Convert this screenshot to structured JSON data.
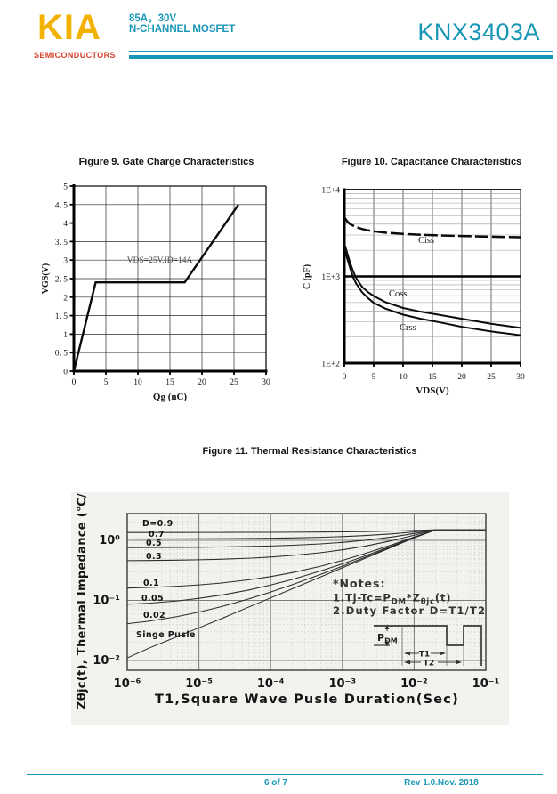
{
  "header": {
    "logo": "KIA",
    "logo_subtitle": "SEMICONDUCTORS",
    "rating": "85A，30V",
    "device_type": "N-CHANNEL MOSFET",
    "part_number": "KNX3403A",
    "accent_color": "#1896B6",
    "logo_color": "#F3B200",
    "logo_subtitle_color": "#D8432C"
  },
  "footer": {
    "page_number": "6 of 7",
    "revision": "Rev 1.0.Nov. 2018"
  },
  "chart_data": [
    {
      "type": "line",
      "title": "Figure 9. Gate Charge Characteristics",
      "xlabel": "Qg (nC)",
      "ylabel": "VGS(V)",
      "xlim": [
        0,
        30
      ],
      "ylim": [
        0,
        5
      ],
      "grid": true,
      "xtick_labels": [
        "0",
        "5",
        "10",
        "15",
        "20",
        "25",
        "30"
      ],
      "ytick_labels": [
        "0",
        "0. 5",
        "1",
        "1. 5",
        "2",
        "2. 5",
        "3",
        "3. 5",
        "4",
        "4. 5",
        "5"
      ],
      "annotation": "VDS=25V,ID=14A",
      "series": [
        {
          "name": "VGS",
          "points": [
            [
              0,
              0
            ],
            [
              3.4,
              2.4
            ],
            [
              17.3,
              2.4
            ],
            [
              25.7,
              4.5
            ]
          ]
        }
      ]
    },
    {
      "type": "line",
      "title": "Figure 10. Capacitance Characteristics",
      "xlabel": "VDS(V)",
      "ylabel": "C (pF)",
      "xlim": [
        0,
        30
      ],
      "yscale": "log",
      "ylim": [
        100,
        10000
      ],
      "grid": true,
      "xtick_labels": [
        "0",
        "5",
        "10",
        "15",
        "20",
        "25",
        "30"
      ],
      "ytick_labels": [
        "1E+2",
        "1E+3",
        "1E+4"
      ],
      "series": [
        {
          "name": "Ciss",
          "points": [
            [
              0,
              4800
            ],
            [
              0.5,
              4300
            ],
            [
              1,
              4000
            ],
            [
              2,
              3700
            ],
            [
              3,
              3520
            ],
            [
              4,
              3400
            ],
            [
              5,
              3310
            ],
            [
              7,
              3190
            ],
            [
              10,
              3090
            ],
            [
              13,
              3020
            ],
            [
              16,
              2970
            ],
            [
              20,
              2920
            ],
            [
              25,
              2870
            ],
            [
              30,
              2830
            ]
          ]
        },
        {
          "name": "Coss",
          "points": [
            [
              0,
              2400
            ],
            [
              0.5,
              1850
            ],
            [
              1,
              1420
            ],
            [
              1.5,
              1150
            ],
            [
              2,
              960
            ],
            [
              3,
              760
            ],
            [
              4,
              660
            ],
            [
              5,
              595
            ],
            [
              7,
              505
            ],
            [
              10,
              432
            ],
            [
              13,
              392
            ],
            [
              16,
              362
            ],
            [
              20,
              325
            ],
            [
              25,
              285
            ],
            [
              30,
              255
            ]
          ]
        },
        {
          "name": "Crss",
          "points": [
            [
              0,
              2250
            ],
            [
              0.5,
              1600
            ],
            [
              1,
              1230
            ],
            [
              1.5,
              980
            ],
            [
              2,
              830
            ],
            [
              3,
              660
            ],
            [
              4,
              565
            ],
            [
              5,
              495
            ],
            [
              7,
              425
            ],
            [
              10,
              362
            ],
            [
              13,
              325
            ],
            [
              16,
              298
            ],
            [
              20,
              262
            ],
            [
              25,
              232
            ],
            [
              30,
              210
            ]
          ]
        }
      ]
    },
    {
      "type": "line",
      "title": "Figure 11. Thermal Resistance Characteristics",
      "xlabel": "T1,Square Wave Pusle Duration(Sec)",
      "ylabel": "Zθjc(t), Thermal Impedance (℃/W)",
      "xscale": "log",
      "yscale": "log",
      "xlim": [
        1e-06,
        0.1
      ],
      "grid": true,
      "xtick_labels": [
        "10⁻⁶",
        "10⁻⁵",
        "10⁻⁴",
        "10⁻³",
        "10⁻²",
        "10⁻¹"
      ],
      "ytick_labels": [
        "10⁰",
        "10⁻¹",
        "10⁻²"
      ],
      "x": [
        1e-06,
        2e-06,
        5e-06,
        1e-05,
        2e-05,
        5e-05,
        0.0001,
        0.0002,
        0.0005,
        0.001,
        0.002,
        0.005,
        0.01,
        0.02,
        0.05,
        0.1
      ],
      "series": [
        {
          "name": "D=0.9",
          "values": [
            1.351,
            1.352,
            1.352,
            1.353,
            1.355,
            1.358,
            1.361,
            1.366,
            1.375,
            1.385,
            1.399,
            1.428,
            1.46,
            1.5,
            1.5,
            1.5
          ]
        },
        {
          "name": "0.7",
          "values": [
            1.053,
            1.055,
            1.057,
            1.06,
            1.065,
            1.073,
            1.083,
            1.097,
            1.124,
            1.154,
            1.198,
            1.283,
            1.38,
            1.5,
            1.5,
            1.5
          ]
        },
        {
          "name": "0.5",
          "values": [
            0.756,
            0.758,
            0.762,
            0.767,
            0.775,
            0.789,
            0.805,
            0.828,
            0.873,
            0.924,
            0.996,
            1.139,
            1.3,
            1.5,
            1.5,
            1.5
          ]
        },
        {
          "name": "0.3",
          "values": [
            0.458,
            0.461,
            0.467,
            0.474,
            0.484,
            0.504,
            0.527,
            0.559,
            0.622,
            0.694,
            0.794,
            0.994,
            1.22,
            1.5,
            1.5,
            1.5
          ]
        },
        {
          "name": "0.1",
          "values": [
            0.16,
            0.164,
            0.172,
            0.181,
            0.194,
            0.22,
            0.249,
            0.29,
            0.371,
            0.463,
            0.593,
            0.85,
            1.14,
            1.5,
            1.5,
            1.5
          ]
        },
        {
          "name": "0.05",
          "values": [
            0.086,
            0.09,
            0.098,
            0.108,
            0.122,
            0.149,
            0.18,
            0.223,
            0.309,
            0.405,
            0.542,
            0.814,
            1.12,
            1.5,
            1.5,
            1.5
          ]
        },
        {
          "name": "0.02",
          "values": [
            0.041,
            0.045,
            0.054,
            0.064,
            0.078,
            0.106,
            0.138,
            0.182,
            0.271,
            0.371,
            0.512,
            0.792,
            1.108,
            1.5,
            1.5,
            1.5
          ]
        },
        {
          "name": "Singe Pusle",
          "values": [
            0.011,
            0.016,
            0.025,
            0.035,
            0.049,
            0.078,
            0.11,
            0.156,
            0.246,
            0.348,
            0.492,
            0.778,
            1.1,
            1.5,
            1.5,
            1.5
          ]
        }
      ]
    }
  ],
  "fig11_notes": {
    "header": "*Notes:",
    "line1_parts": {
      "a": "1.Tj-Tc=P",
      "b": "DM",
      "c": "*Z",
      "d": "θjc",
      "e": "(t)"
    },
    "line2": "2.Duty Factor D=T1/T2"
  },
  "fig11_waveform": {
    "p_main": "P",
    "p_sub": "DM",
    "t1": "T1",
    "t2": "T2"
  }
}
